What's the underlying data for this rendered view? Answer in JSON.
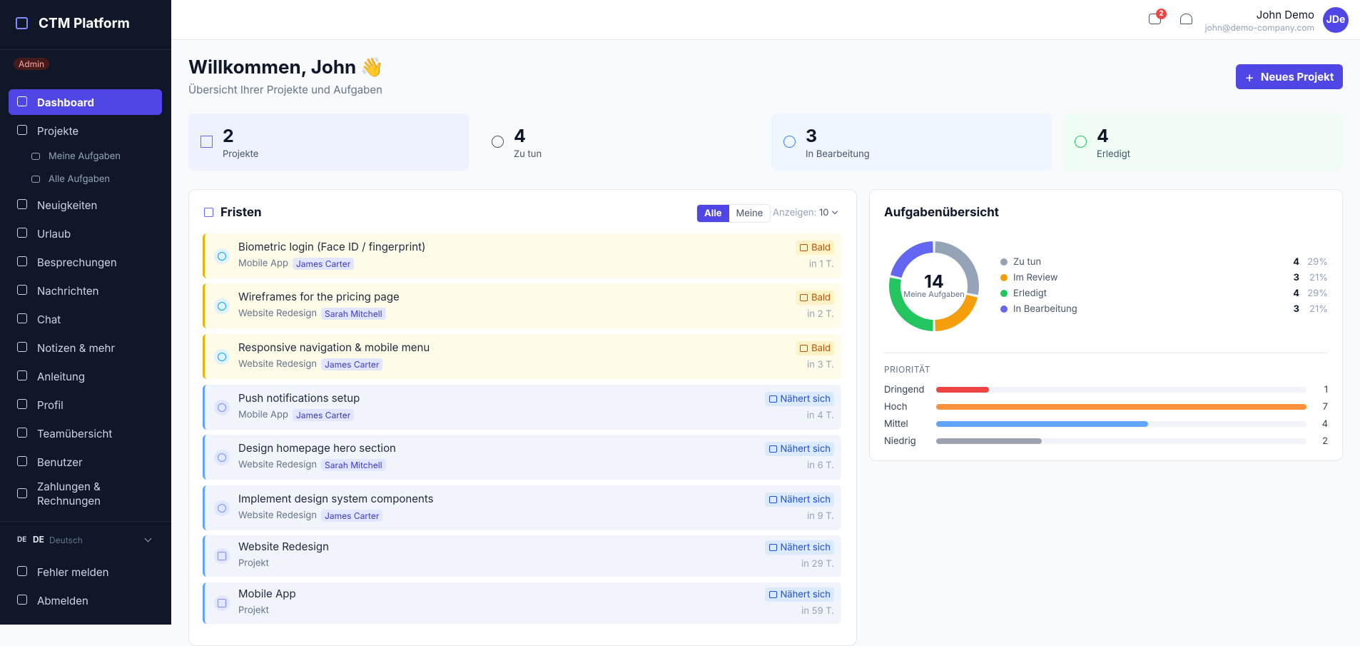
{
  "sidebar": {
    "brand": "CTM Platform",
    "role": "Admin",
    "nav": [
      {
        "label": "Dashboard",
        "active": true
      },
      {
        "label": "Projekte"
      },
      {
        "label": "Meine Aufgaben",
        "sub": true
      },
      {
        "label": "Alle Aufgaben",
        "sub": true
      },
      {
        "label": "Neuigkeiten"
      },
      {
        "label": "Urlaub"
      },
      {
        "label": "Besprechungen"
      },
      {
        "label": "Nachrichten"
      },
      {
        "label": "Chat"
      },
      {
        "label": "Notizen & mehr"
      },
      {
        "label": "Anleitung"
      },
      {
        "label": "Profil"
      },
      {
        "label": "Teamübersicht"
      },
      {
        "label": "Benutzer"
      },
      {
        "label": "Zahlungen & Rechnungen"
      }
    ],
    "language": {
      "flag": "DE",
      "code": "DE",
      "label": "Deutsch"
    },
    "footer": [
      "Fehler melden",
      "Abmelden"
    ]
  },
  "header": {
    "messages_badge": 2,
    "user": {
      "name": "John Demo",
      "email": "john@demo-company.com",
      "initials": "JDe"
    }
  },
  "page": {
    "title": "Willkommen, John 👋",
    "subtitle": "Übersicht Ihrer Projekte und Aufgaben",
    "button": "Neues Projekt"
  },
  "stats": [
    {
      "value": 2,
      "label": "Projekte",
      "color": "#6366f1",
      "bg": "#eef2ff"
    },
    {
      "value": 4,
      "label": "Zu tun",
      "color": "#475569",
      "bg": "#f8fafc"
    },
    {
      "value": 3,
      "label": "In Bearbeitung",
      "color": "#3b82f6",
      "bg": "#eff6ff"
    },
    {
      "value": 4,
      "label": "Erledigt",
      "color": "#22c55e",
      "bg": "#f0fdf4"
    }
  ],
  "deadlines": {
    "title": "Fristen",
    "filters": [
      "Alle",
      "Meine"
    ],
    "show_label": "Anzeigen:",
    "show_value": "10",
    "items": [
      {
        "title": "Biometric login (Face ID / fingerprint)",
        "project": "Mobile App",
        "assignee": "James Carter",
        "status": "Bald",
        "due": "in 1 T.",
        "tone": "amber",
        "icon": "clock"
      },
      {
        "title": "Wireframes for the pricing page",
        "project": "Website Redesign",
        "assignee": "Sarah Mitchell",
        "status": "Bald",
        "due": "in 2 T.",
        "tone": "amber",
        "icon": "clock"
      },
      {
        "title": "Responsive navigation & mobile menu",
        "project": "Website Redesign",
        "assignee": "James Carter",
        "status": "Bald",
        "due": "in 3 T.",
        "tone": "amber",
        "icon": "clock"
      },
      {
        "title": "Push notifications setup",
        "project": "Mobile App",
        "assignee": "James Carter",
        "status": "Nähert sich",
        "due": "in 4 T.",
        "tone": "blue",
        "icon": "clock"
      },
      {
        "title": "Design homepage hero section",
        "project": "Website Redesign",
        "assignee": "Sarah Mitchell",
        "status": "Nähert sich",
        "due": "in 6 T.",
        "tone": "blue",
        "icon": "clock"
      },
      {
        "title": "Implement design system components",
        "project": "Website Redesign",
        "assignee": "James Carter",
        "status": "Nähert sich",
        "due": "in 9 T.",
        "tone": "blue",
        "icon": "clock"
      },
      {
        "title": "Website Redesign",
        "project": "Projekt",
        "status": "Nähert sich",
        "due": "in 29 T.",
        "tone": "blue",
        "icon": "folder"
      },
      {
        "title": "Mobile App",
        "project": "Projekt",
        "status": "Nähert sich",
        "due": "in 59 T.",
        "tone": "blue",
        "icon": "folder"
      }
    ]
  },
  "overview": {
    "title": "Aufgabenübersicht",
    "total": 14,
    "total_label": "Meine Aufgaben",
    "segments": [
      {
        "label": "Zu tun",
        "count": 4,
        "percent": "29%",
        "color": "#94a3b8"
      },
      {
        "label": "Im Review",
        "count": 3,
        "percent": "21%",
        "color": "#f59e0b"
      },
      {
        "label": "Erledigt",
        "count": 4,
        "percent": "29%",
        "color": "#22c55e"
      },
      {
        "label": "In Bearbeitung",
        "count": 3,
        "percent": "21%",
        "color": "#6366f1"
      }
    ],
    "priority_title": "PRIORITÄT",
    "priority": [
      {
        "label": "Dringend",
        "count": 1,
        "color": "#ef4444"
      },
      {
        "label": "Hoch",
        "count": 7,
        "color": "#fb923c"
      },
      {
        "label": "Mittel",
        "count": 4,
        "color": "#60a5fa"
      },
      {
        "label": "Niedrig",
        "count": 2,
        "color": "#9ca3af"
      }
    ]
  }
}
